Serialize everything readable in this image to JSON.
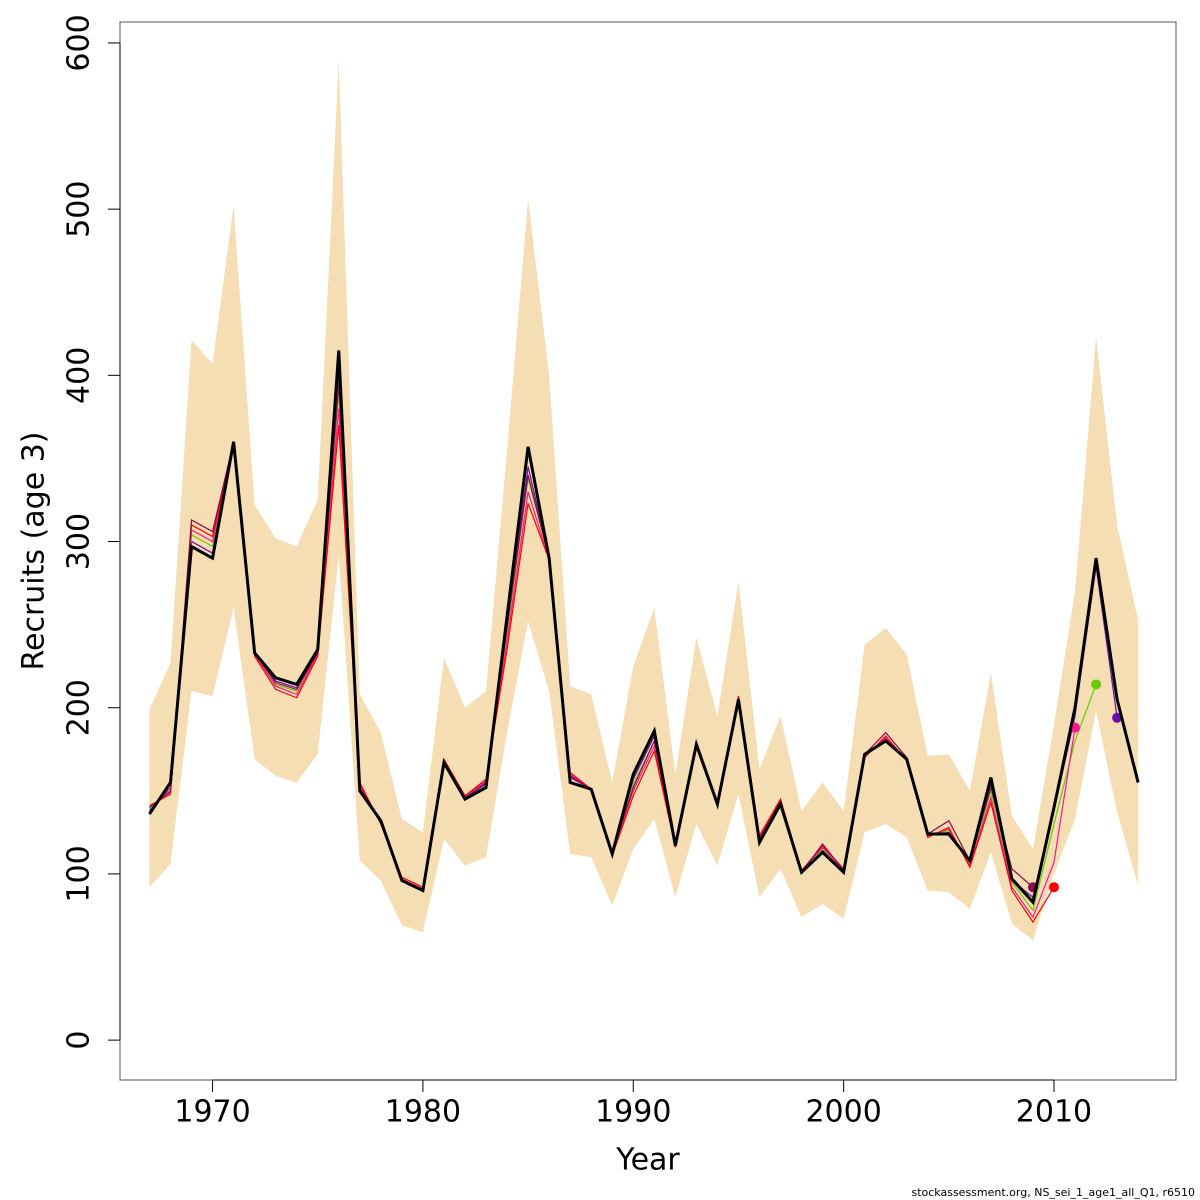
{
  "chart_data": {
    "type": "line",
    "xlabel": "Year",
    "ylabel": "Recruits (age 3)",
    "footer": "stockassessment.org, NS_sei_1_age1_all_Q1, r6510",
    "x": [
      1967,
      1968,
      1969,
      1970,
      1971,
      1972,
      1973,
      1974,
      1975,
      1976,
      1977,
      1978,
      1979,
      1980,
      1981,
      1982,
      1983,
      1984,
      1985,
      1986,
      1987,
      1988,
      1989,
      1990,
      1991,
      1992,
      1993,
      1994,
      1995,
      1996,
      1997,
      1998,
      1999,
      2000,
      2001,
      2002,
      2003,
      2004,
      2005,
      2006,
      2007,
      2008,
      2009,
      2010,
      2011,
      2012,
      2013,
      2014
    ],
    "xlim": [
      1965.6,
      2015.8
    ],
    "xticks": [
      1970,
      1980,
      1990,
      2000,
      2010
    ],
    "ylim": [
      -24,
      612.6
    ],
    "yticks": [
      0,
      100,
      200,
      300,
      400,
      500,
      600
    ],
    "band": {
      "color": "#f5deb3",
      "upper": [
        199,
        227,
        421,
        407,
        502,
        322,
        302,
        297,
        325,
        590,
        208,
        185,
        133,
        125,
        230,
        200,
        210,
        355,
        506,
        400,
        213,
        208,
        155,
        225,
        260,
        160,
        242,
        195,
        276,
        163,
        195,
        138,
        155,
        138,
        238,
        248,
        232,
        171,
        172,
        150,
        221,
        135,
        115,
        190,
        270,
        423,
        310,
        253
      ],
      "lower": [
        92,
        106,
        210,
        207,
        260,
        169,
        159,
        155,
        172,
        292,
        108,
        96,
        69,
        65,
        121,
        105,
        110,
        185,
        252,
        210,
        112,
        110,
        81,
        115,
        133,
        86,
        130,
        105,
        148,
        86,
        103,
        74,
        82,
        73,
        125,
        130,
        122,
        90,
        89,
        79,
        113,
        70,
        60,
        100,
        133,
        198,
        137,
        93
      ]
    },
    "series": [
      {
        "color": "#6a0dad",
        "values": [
          138,
          152,
          300,
          293,
          360,
          233,
          216,
          212,
          234,
          400,
          152,
          131,
          97,
          90,
          167,
          146,
          154,
          250,
          345,
          290,
          158,
          151,
          112,
          157,
          183,
          117,
          177,
          142,
          206,
          120,
          143,
          101,
          114,
          101,
          172,
          181,
          169,
          123,
          125,
          107,
          154,
          96,
          86,
          138,
          195,
          285,
          194,
          null
        ]
      },
      {
        "color": "#66cc00",
        "values": [
          139,
          150,
          304,
          297,
          359,
          232,
          214,
          210,
          233,
          390,
          153,
          131,
          97,
          91,
          168,
          146,
          155,
          245,
          338,
          290,
          159,
          151,
          112,
          154,
          180,
          117,
          177,
          142,
          206,
          121,
          143,
          101,
          115,
          102,
          171,
          180,
          169,
          123,
          126,
          106,
          150,
          95,
          78,
          130,
          180,
          214,
          null,
          null
        ]
      },
      {
        "color": "#ff1493",
        "values": [
          140,
          149,
          307,
          300,
          359,
          232,
          213,
          208,
          232,
          380,
          154,
          130,
          97,
          91,
          168,
          147,
          156,
          240,
          330,
          289,
          160,
          151,
          112,
          150,
          177,
          117,
          177,
          141,
          207,
          122,
          144,
          102,
          116,
          102,
          171,
          182,
          169,
          123,
          127,
          105,
          146,
          92,
          74,
          107,
          188,
          null,
          null,
          null
        ]
      },
      {
        "color": "#ff0000",
        "values": [
          141,
          148,
          310,
          303,
          358,
          231,
          211,
          206,
          231,
          370,
          155,
          130,
          98,
          92,
          169,
          147,
          157,
          235,
          323,
          289,
          161,
          151,
          111,
          147,
          174,
          116,
          176,
          141,
          207,
          123,
          145,
          102,
          117,
          103,
          170,
          183,
          168,
          122,
          128,
          104,
          143,
          90,
          71,
          92,
          null,
          null,
          null,
          null
        ]
      },
      {
        "color": "#8b0a50",
        "values": [
          140,
          150,
          313,
          306,
          360,
          233,
          215,
          211,
          233,
          395,
          152,
          132,
          97,
          90,
          168,
          146,
          155,
          248,
          340,
          290,
          159,
          151,
          112,
          152,
          180,
          117,
          178,
          142,
          206,
          121,
          144,
          101,
          118,
          102,
          172,
          185,
          170,
          124,
          132,
          108,
          152,
          103,
          92,
          null,
          null,
          null,
          null,
          null
        ]
      },
      {
        "color": "#000000",
        "values": [
          136,
          155,
          297,
          290,
          360,
          233,
          218,
          214,
          235,
          415,
          150,
          132,
          96,
          90,
          167,
          145,
          152,
          255,
          357,
          290,
          155,
          151,
          112,
          160,
          186,
          117,
          178,
          142,
          205,
          119,
          142,
          101,
          113,
          101,
          172,
          180,
          169,
          124,
          124,
          108,
          158,
          97,
          83,
          140,
          200,
          290,
          205,
          155
        ]
      }
    ]
  }
}
